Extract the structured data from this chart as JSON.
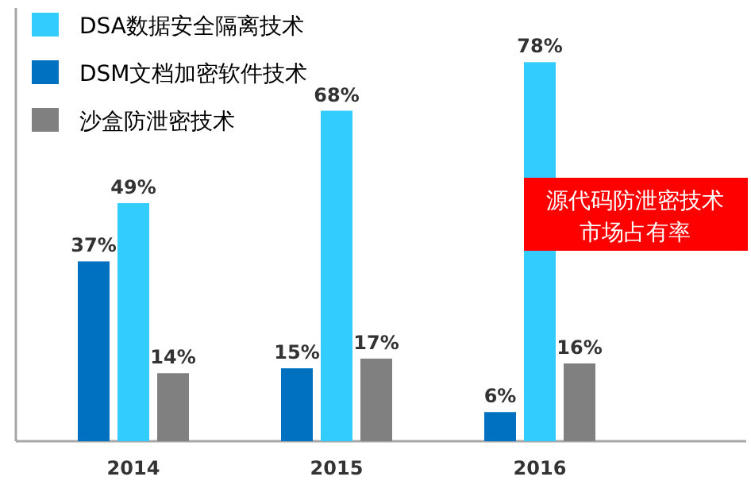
{
  "chart_data": {
    "type": "bar",
    "categories": [
      "2014",
      "2015",
      "2016"
    ],
    "series": [
      {
        "name": "DSA数据安全隔离技术",
        "color": "#33ccff",
        "values": [
          49,
          68,
          78
        ],
        "value_labels": [
          "49%",
          "68%",
          "78%"
        ]
      },
      {
        "name": "DSM文档加密软件技术",
        "color": "#0070c0",
        "values": [
          37,
          15,
          6
        ],
        "value_labels": [
          "37%",
          "15%",
          "6%"
        ]
      },
      {
        "name": "沙盒防泄密技术",
        "color": "#808080",
        "values": [
          14,
          17,
          16
        ],
        "value_labels": [
          "14%",
          "17%",
          "16%"
        ]
      }
    ],
    "legend": "top left",
    "annotations": [
      "源代码防泄密技术",
      "市场占有率"
    ]
  }
}
